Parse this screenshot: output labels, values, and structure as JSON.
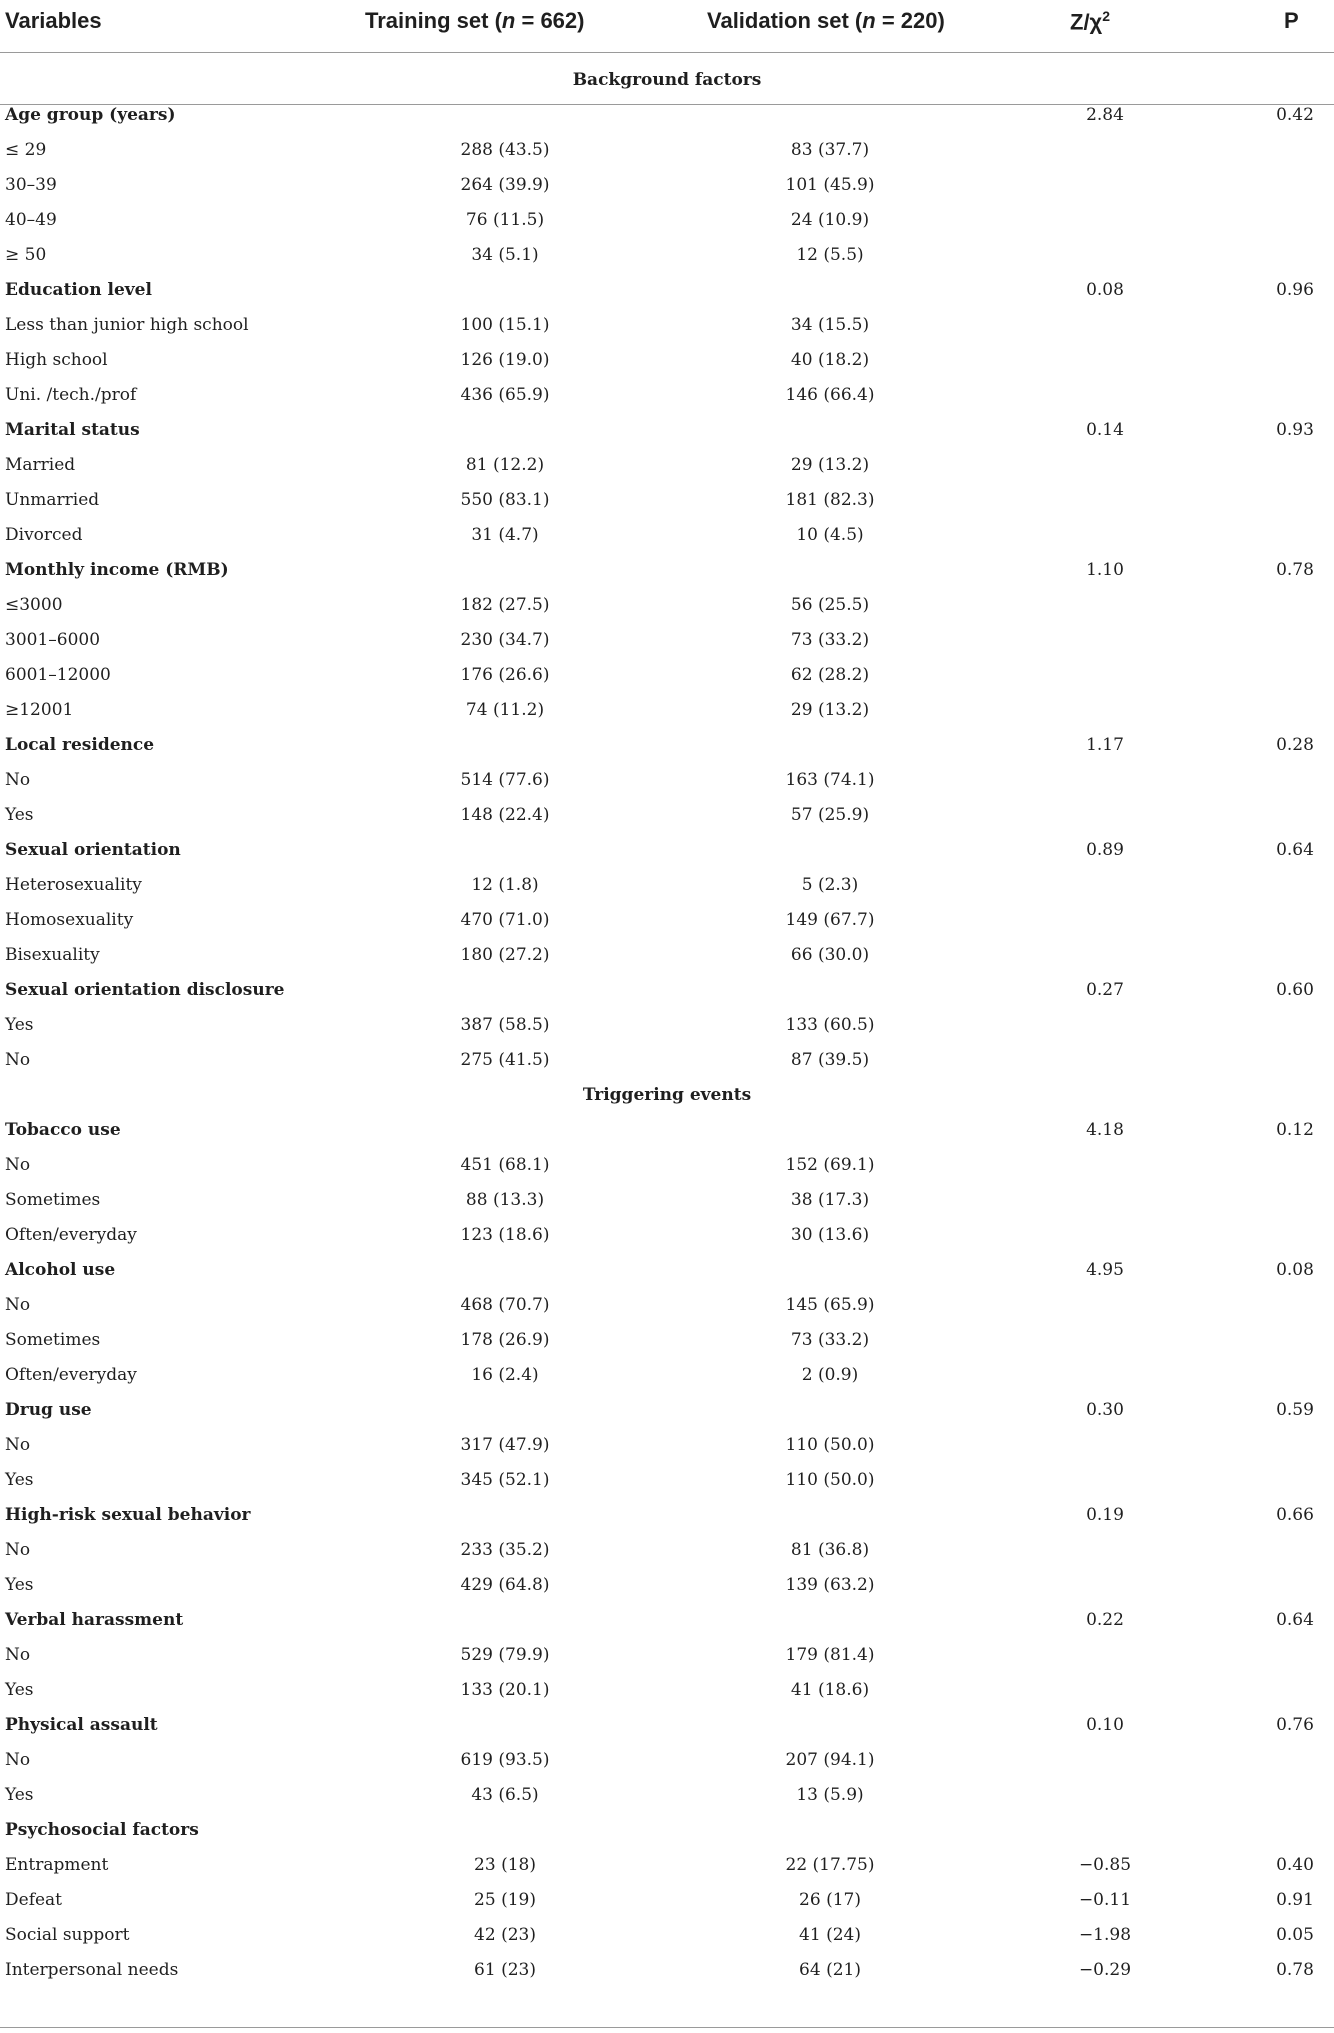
{
  "header": {
    "variables": "Variables",
    "training_prefix": "Training set (",
    "training_n": "n",
    "training_suffix": " = 662)",
    "validation_prefix": "Validation set (",
    "validation_n": "n",
    "validation_suffix": " = 220)",
    "stat_base": "Z/χ",
    "stat_sup": "2",
    "p": "P"
  },
  "rows": [
    {
      "kind": "section",
      "label": "Background factors"
    },
    {
      "kind": "group",
      "label": "Age group (years)",
      "stat": "2.84",
      "p": "0.42"
    },
    {
      "kind": "item",
      "label": "≤ 29",
      "train": "288 (43.5)",
      "valid": "83 (37.7)"
    },
    {
      "kind": "item",
      "label": "30–39",
      "train": "264 (39.9)",
      "valid": "101 (45.9)"
    },
    {
      "kind": "item",
      "label": "40–49",
      "train": "76 (11.5)",
      "valid": "24 (10.9)"
    },
    {
      "kind": "item",
      "label": "≥ 50",
      "train": "34 (5.1)",
      "valid": "12 (5.5)"
    },
    {
      "kind": "group",
      "label": "Education level",
      "stat": "0.08",
      "p": "0.96"
    },
    {
      "kind": "item",
      "label": "Less than junior high school",
      "train": "100 (15.1)",
      "valid": "34 (15.5)"
    },
    {
      "kind": "item",
      "label": "High school",
      "train": "126 (19.0)",
      "valid": "40 (18.2)"
    },
    {
      "kind": "item",
      "label": "Uni. /tech./prof",
      "train": "436 (65.9)",
      "valid": "146 (66.4)"
    },
    {
      "kind": "group",
      "label": "Marital status",
      "stat": "0.14",
      "p": "0.93"
    },
    {
      "kind": "item",
      "label": "Married",
      "train": "81 (12.2)",
      "valid": "29 (13.2)"
    },
    {
      "kind": "item",
      "label": "Unmarried",
      "train": "550 (83.1)",
      "valid": "181 (82.3)"
    },
    {
      "kind": "item",
      "label": "Divorced",
      "train": "31 (4.7)",
      "valid": "10 (4.5)"
    },
    {
      "kind": "group",
      "label": "Monthly income (RMB)",
      "stat": "1.10",
      "p": "0.78"
    },
    {
      "kind": "item",
      "label": "≤3000",
      "train": "182 (27.5)",
      "valid": "56 (25.5)"
    },
    {
      "kind": "item",
      "label": "3001–6000",
      "train": "230 (34.7)",
      "valid": "73 (33.2)"
    },
    {
      "kind": "item",
      "label": "6001–12000",
      "train": "176 (26.6)",
      "valid": "62 (28.2)"
    },
    {
      "kind": "item",
      "label": "≥12001",
      "train": "74 (11.2)",
      "valid": "29 (13.2)"
    },
    {
      "kind": "group",
      "label": "Local residence",
      "stat": "1.17",
      "p": "0.28"
    },
    {
      "kind": "item",
      "label": "No",
      "train": "514 (77.6)",
      "valid": "163 (74.1)"
    },
    {
      "kind": "item",
      "label": "Yes",
      "train": "148 (22.4)",
      "valid": "57 (25.9)"
    },
    {
      "kind": "group",
      "label": "Sexual orientation",
      "stat": "0.89",
      "p": "0.64"
    },
    {
      "kind": "item",
      "label": "Heterosexuality",
      "train": "12 (1.8)",
      "valid": "5 (2.3)"
    },
    {
      "kind": "item",
      "label": "Homosexuality",
      "train": "470 (71.0)",
      "valid": "149 (67.7)"
    },
    {
      "kind": "item",
      "label": "Bisexuality",
      "train": "180 (27.2)",
      "valid": "66 (30.0)"
    },
    {
      "kind": "group",
      "label": "Sexual orientation disclosure",
      "stat": "0.27",
      "p": "0.60"
    },
    {
      "kind": "item",
      "label": "Yes",
      "train": "387 (58.5)",
      "valid": "133 (60.5)"
    },
    {
      "kind": "item",
      "label": "No",
      "train": "275 (41.5)",
      "valid": "87 (39.5)"
    },
    {
      "kind": "section",
      "label": "Triggering events"
    },
    {
      "kind": "group",
      "label": "Tobacco use",
      "stat": "4.18",
      "p": "0.12"
    },
    {
      "kind": "item",
      "label": "No",
      "train": "451 (68.1)",
      "valid": "152 (69.1)"
    },
    {
      "kind": "item",
      "label": "Sometimes",
      "train": "88 (13.3)",
      "valid": "38 (17.3)"
    },
    {
      "kind": "item",
      "label": "Often/everyday",
      "train": "123 (18.6)",
      "valid": "30 (13.6)"
    },
    {
      "kind": "group",
      "label": "Alcohol use",
      "stat": "4.95",
      "p": "0.08"
    },
    {
      "kind": "item",
      "label": "No",
      "train": "468 (70.7)",
      "valid": "145 (65.9)"
    },
    {
      "kind": "item",
      "label": "Sometimes",
      "train": "178 (26.9)",
      "valid": "73 (33.2)"
    },
    {
      "kind": "item",
      "label": "Often/everyday",
      "train": "16 (2.4)",
      "valid": "2 (0.9)"
    },
    {
      "kind": "group",
      "label": "Drug use",
      "stat": "0.30",
      "p": "0.59"
    },
    {
      "kind": "item",
      "label": "No",
      "train": "317 (47.9)",
      "valid": "110 (50.0)"
    },
    {
      "kind": "item",
      "label": "Yes",
      "train": "345 (52.1)",
      "valid": "110 (50.0)"
    },
    {
      "kind": "group",
      "label": "High-risk sexual behavior",
      "stat": "0.19",
      "p": "0.66"
    },
    {
      "kind": "item",
      "label": "No",
      "train": "233 (35.2)",
      "valid": "81 (36.8)"
    },
    {
      "kind": "item",
      "label": "Yes",
      "train": "429 (64.8)",
      "valid": "139 (63.2)"
    },
    {
      "kind": "group",
      "label": "Verbal harassment",
      "stat": "0.22",
      "p": "0.64"
    },
    {
      "kind": "item",
      "label": "No",
      "train": "529 (79.9)",
      "valid": "179 (81.4)"
    },
    {
      "kind": "item",
      "label": "Yes",
      "train": "133 (20.1)",
      "valid": "41 (18.6)"
    },
    {
      "kind": "group",
      "label": "Physical assault",
      "stat": "0.10",
      "p": "0.76"
    },
    {
      "kind": "item",
      "label": "No",
      "train": "619 (93.5)",
      "valid": "207 (94.1)"
    },
    {
      "kind": "item",
      "label": "Yes",
      "train": "43 (6.5)",
      "valid": "13 (5.9)"
    },
    {
      "kind": "group",
      "label": "Psychosocial factors"
    },
    {
      "kind": "item",
      "label": "Entrapment",
      "train": "23 (18)",
      "valid": "22 (17.75)",
      "stat": "−0.85",
      "p": "0.40"
    },
    {
      "kind": "item",
      "label": "Defeat",
      "train": "25 (19)",
      "valid": "26 (17)",
      "stat": "−0.11",
      "p": "0.91"
    },
    {
      "kind": "item",
      "label": "Social support",
      "train": "42 (23)",
      "valid": "41 (24)",
      "stat": "−1.98",
      "p": "0.05"
    },
    {
      "kind": "item",
      "label": "Interpersonal needs",
      "train": "61 (23)",
      "valid": "64 (21)",
      "stat": "−0.29",
      "p": "0.78"
    }
  ]
}
